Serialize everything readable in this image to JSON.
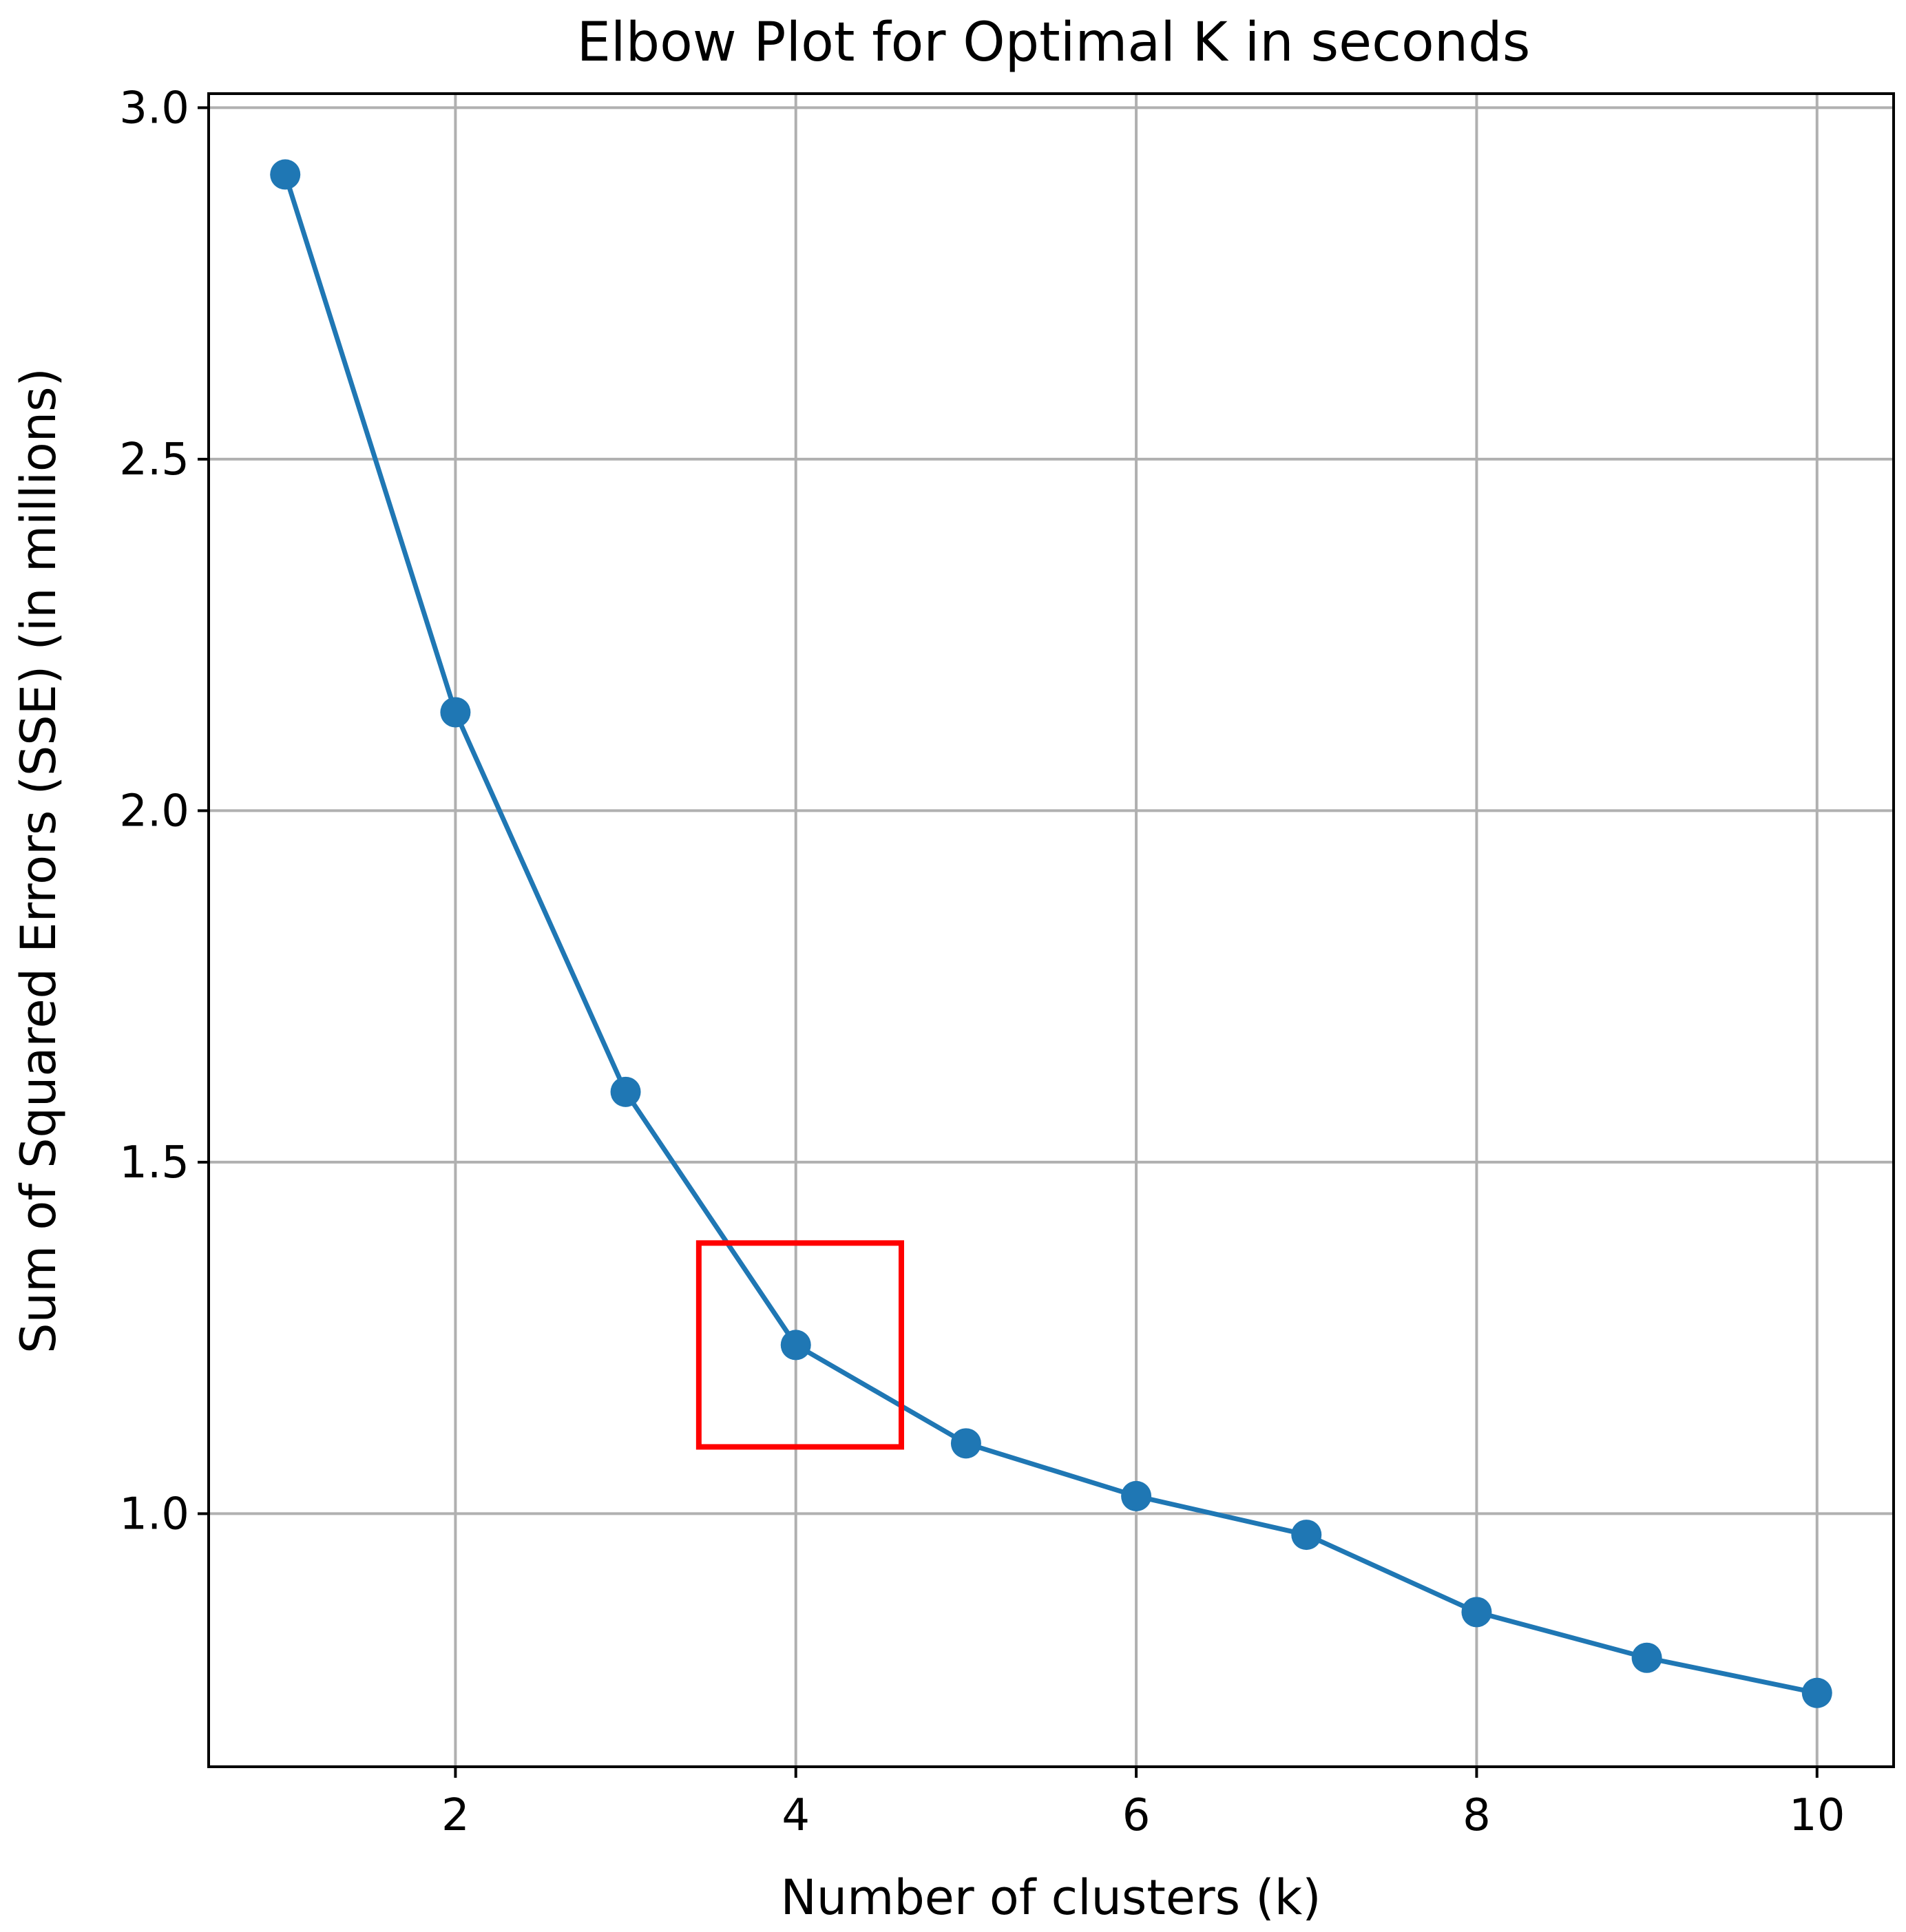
{
  "chart_data": {
    "type": "line",
    "title": "Elbow Plot for Optimal K in seconds",
    "xlabel": "Number of clusters (k)",
    "ylabel": "Sum of Squared Errors (SSE) (in millions)",
    "x": [
      1,
      2,
      3,
      4,
      5,
      6,
      7,
      8,
      9,
      10
    ],
    "series": [
      {
        "values": [
          2.905,
          2.14,
          1.6,
          1.24,
          1.1,
          1.025,
          0.97,
          0.86,
          0.795,
          0.745
        ]
      }
    ],
    "xlim": [
      0.55,
      10.45
    ],
    "ylim": [
      0.64,
      3.02
    ],
    "xticks": [
      2,
      4,
      6,
      8,
      10
    ],
    "xtick_labels": [
      "2",
      "4",
      "6",
      "8",
      "10"
    ],
    "yticks": [
      1.0,
      1.5,
      2.0,
      2.5,
      3.0
    ],
    "ytick_labels": [
      "1.0",
      "1.5",
      "2.0",
      "2.5",
      "3.0"
    ],
    "grid": true,
    "line_color": "#1f77b4",
    "annotation": {
      "type": "highlight-box",
      "color": "#ff0000",
      "x_range": [
        3.43,
        4.62
      ],
      "y_range": [
        1.095,
        1.385
      ]
    }
  }
}
